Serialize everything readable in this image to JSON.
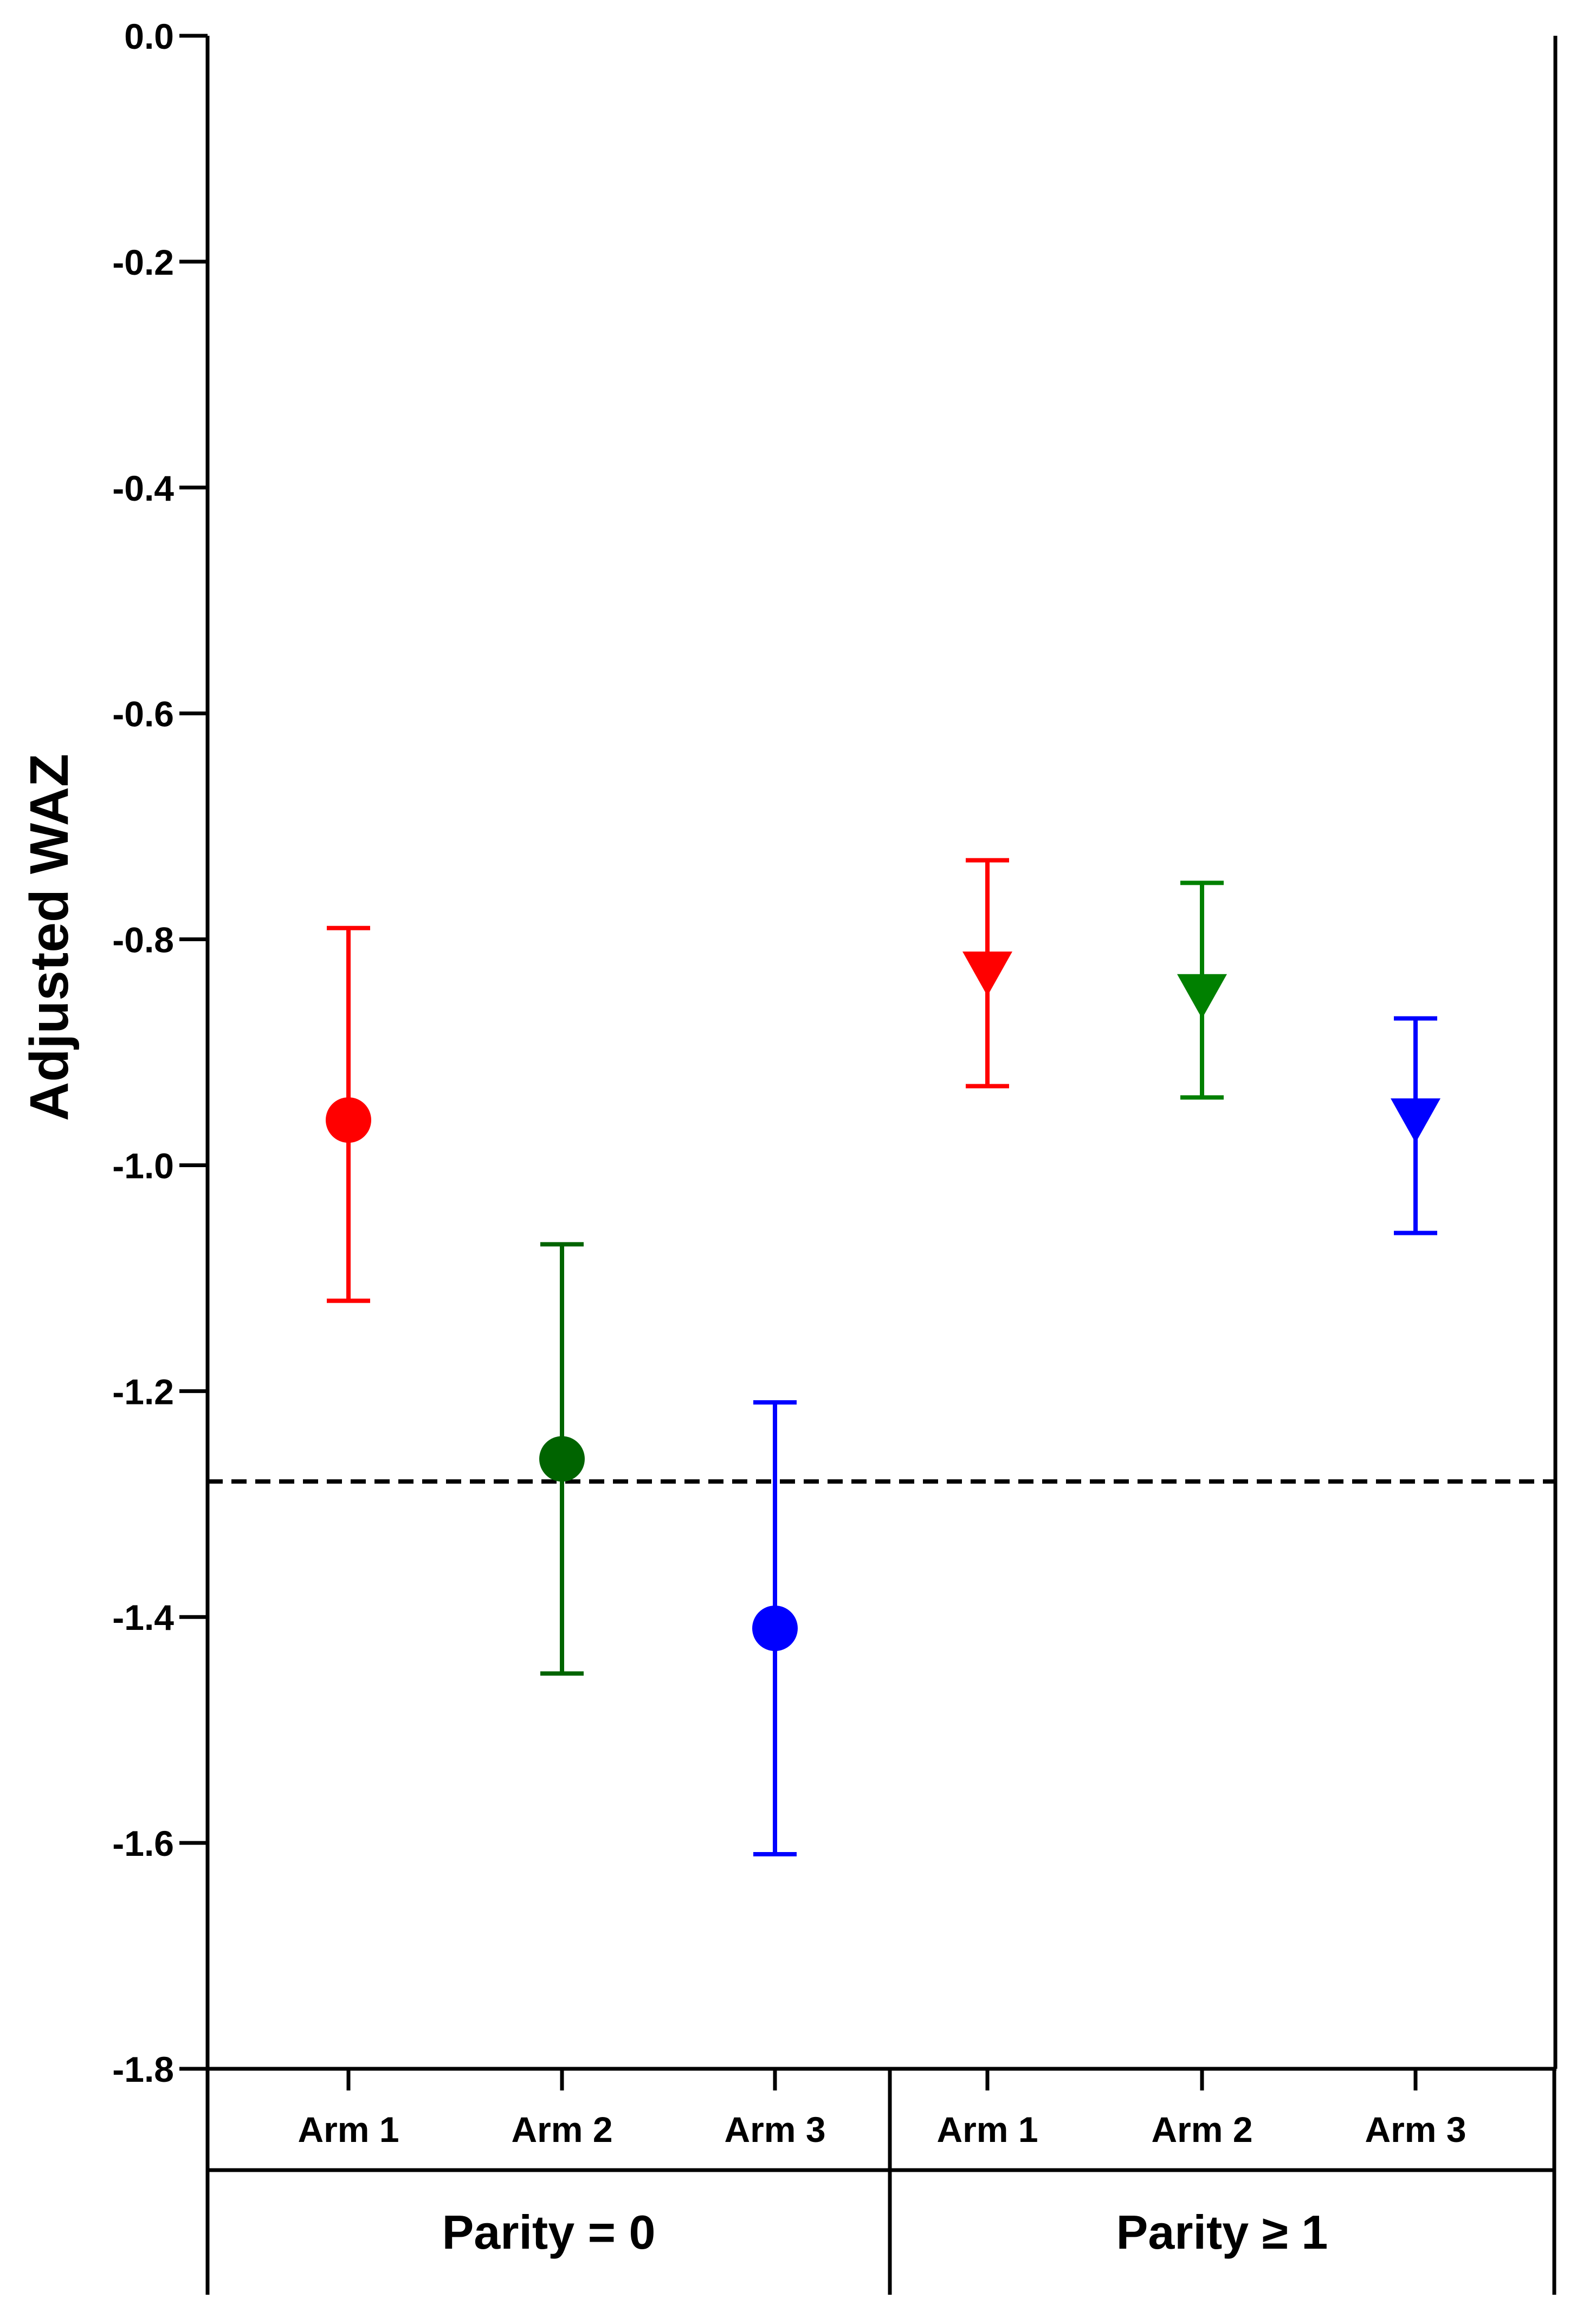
{
  "chart_data": {
    "type": "scatter",
    "ylabel": "Adjusted WAZ",
    "xlabel": "",
    "title": "",
    "ylim": [
      -1.8,
      0.0
    ],
    "yticks": [
      0.0,
      -0.2,
      -0.4,
      -0.6,
      -0.8,
      -1.0,
      -1.2,
      -1.4,
      -1.6,
      -1.8
    ],
    "ytick_labels": [
      "0.0",
      "-0.2",
      "-0.4",
      "-0.6",
      "-0.8",
      "-1.0",
      "-1.2",
      "-1.4",
      "-1.6",
      "-1.8"
    ],
    "reference_line": {
      "y": -1.28,
      "style": "dashed",
      "color": "#000000"
    },
    "grid": false,
    "groups": [
      {
        "label": "Parity = 0",
        "marker": "circle",
        "points": [
          {
            "category": "Arm 1",
            "y": -0.96,
            "lower": -1.12,
            "upper": -0.79,
            "color": "#ff0000"
          },
          {
            "category": "Arm 2",
            "y": -1.26,
            "lower": -1.45,
            "upper": -1.07,
            "color": "#006400"
          },
          {
            "category": "Arm 3",
            "y": -1.41,
            "lower": -1.61,
            "upper": -1.21,
            "color": "#0000ff"
          }
        ]
      },
      {
        "label": "Parity ≥ 1",
        "marker": "triangle-down",
        "points": [
          {
            "category": "Arm 1",
            "y": -0.83,
            "lower": -0.93,
            "upper": -0.73,
            "color": "#ff0000"
          },
          {
            "category": "Arm 2",
            "y": -0.85,
            "lower": -0.94,
            "upper": -0.75,
            "color": "#008000"
          },
          {
            "category": "Arm 3",
            "y": -0.96,
            "lower": -1.06,
            "upper": -0.87,
            "color": "#0000ff"
          }
        ]
      }
    ]
  }
}
